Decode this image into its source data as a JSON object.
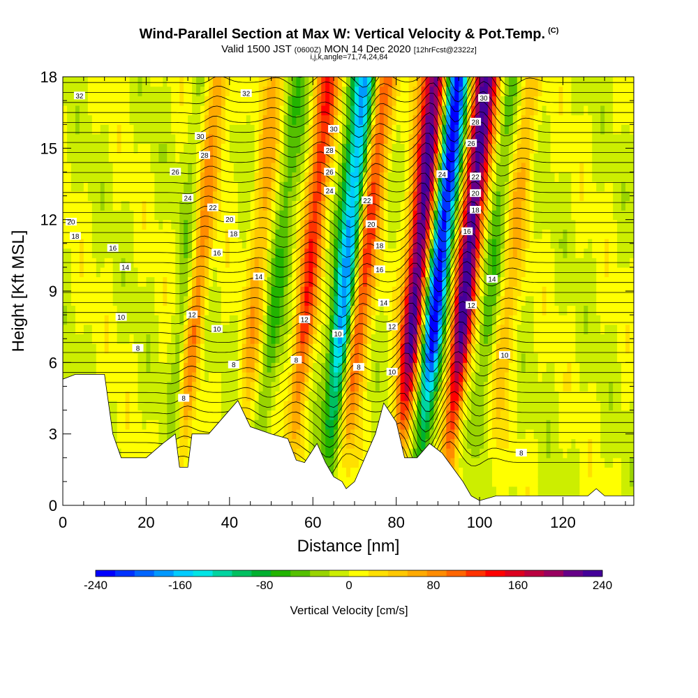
{
  "header": {
    "title": "Wind-Parallel Section at Max W: Vertical Velocity & Pot.Temp.",
    "title_tag": "(C)",
    "valid_main_a": "Valid 1500 JST",
    "valid_small_a": "(0600Z)",
    "valid_main_b": "MON 14 Dec 2020",
    "valid_small_b": "[12hrFcst@2322z]",
    "subline": "i,j,k,angle=71,74,24,84"
  },
  "chart_data": {
    "type": "heatmap",
    "title": "Wind-Parallel Section at Max W: Vertical Velocity & Pot.Temp.",
    "xlabel": "Distance [nm]",
    "ylabel": "Height [Kft MSL]",
    "xlim": [
      0,
      137
    ],
    "ylim": [
      0,
      18
    ],
    "x_ticks": [
      "0",
      "20",
      "40",
      "60",
      "80",
      "100",
      "120"
    ],
    "y_ticks": [
      "0",
      "3",
      "6",
      "9",
      "12",
      "15",
      "18"
    ],
    "colorbar": {
      "label": "Vertical Velocity [cm/s]",
      "range": [
        -240,
        240
      ],
      "tick_labels": [
        "-240",
        "-160",
        "-80",
        "0",
        "80",
        "160",
        "240"
      ],
      "colors": [
        "#0000ff",
        "#0033ff",
        "#0066ff",
        "#0099ff",
        "#00ccff",
        "#00e5e5",
        "#00d4a0",
        "#00c060",
        "#00b030",
        "#22b400",
        "#55c000",
        "#99d400",
        "#ccee00",
        "#ffff00",
        "#ffe000",
        "#ffc800",
        "#ffaa00",
        "#ff8c00",
        "#ff6600",
        "#ff3300",
        "#ff0000",
        "#dd0020",
        "#bb0040",
        "#990060",
        "#660088",
        "#440099"
      ]
    },
    "updrafts": [
      {
        "x": 30,
        "w_max": 170
      },
      {
        "x": 45,
        "w_max": 60
      },
      {
        "x": 57,
        "w_max": 120
      },
      {
        "x": 70,
        "w_max": 130
      },
      {
        "x": 83,
        "w_max": 240
      },
      {
        "x": 95,
        "w_max": 240
      },
      {
        "x": 105,
        "w_max": 60
      }
    ],
    "downdrafts": [
      {
        "x": 29,
        "w_min": -120
      },
      {
        "x": 50,
        "w_min": -60
      },
      {
        "x": 66,
        "w_min": -190
      },
      {
        "x": 88,
        "w_min": -240
      },
      {
        "x": 101,
        "w_min": -60
      }
    ],
    "terrain_kft": [
      [
        0,
        5.3
      ],
      [
        3,
        5.5
      ],
      [
        10,
        5.5
      ],
      [
        12,
        3.0
      ],
      [
        14,
        2.0
      ],
      [
        20,
        2.0
      ],
      [
        24,
        2.6
      ],
      [
        27,
        3.0
      ],
      [
        28,
        1.6
      ],
      [
        30,
        1.6
      ],
      [
        31,
        3.0
      ],
      [
        35,
        3.0
      ],
      [
        38,
        3.6
      ],
      [
        42,
        4.4
      ],
      [
        45,
        3.3
      ],
      [
        50,
        3.0
      ],
      [
        54,
        2.8
      ],
      [
        56,
        1.9
      ],
      [
        58,
        1.8
      ],
      [
        61,
        2.6
      ],
      [
        63,
        1.8
      ],
      [
        65,
        1.2
      ],
      [
        67,
        1.0
      ],
      [
        68,
        0.7
      ],
      [
        70,
        1.0
      ],
      [
        72,
        1.8
      ],
      [
        75,
        3.0
      ],
      [
        77,
        4.3
      ],
      [
        80,
        3.5
      ],
      [
        82,
        2.0
      ],
      [
        85,
        2.0
      ],
      [
        88,
        2.6
      ],
      [
        91,
        2.2
      ],
      [
        96,
        1.0
      ],
      [
        98,
        0.4
      ],
      [
        100,
        0.2
      ],
      [
        104,
        0.4
      ],
      [
        106,
        0.4
      ],
      [
        112,
        0.4
      ],
      [
        120,
        0.4
      ],
      [
        126,
        0.4
      ],
      [
        128,
        0.7
      ],
      [
        130,
        0.4
      ],
      [
        137,
        0.4
      ]
    ],
    "contour_labels": [
      {
        "x": 4,
        "y": 17.2,
        "text": "32"
      },
      {
        "x": 44,
        "y": 17.3,
        "text": "32"
      },
      {
        "x": 33,
        "y": 15.5,
        "text": "30"
      },
      {
        "x": 65,
        "y": 15.8,
        "text": "30"
      },
      {
        "x": 101,
        "y": 17.1,
        "text": "30"
      },
      {
        "x": 34,
        "y": 14.7,
        "text": "28"
      },
      {
        "x": 64,
        "y": 14.9,
        "text": "28"
      },
      {
        "x": 99,
        "y": 16.1,
        "text": "28"
      },
      {
        "x": 98,
        "y": 15.2,
        "text": "26"
      },
      {
        "x": 27,
        "y": 14.0,
        "text": "26"
      },
      {
        "x": 64,
        "y": 14.0,
        "text": "26"
      },
      {
        "x": 30,
        "y": 12.9,
        "text": "24"
      },
      {
        "x": 64,
        "y": 13.2,
        "text": "24"
      },
      {
        "x": 91,
        "y": 13.9,
        "text": "24"
      },
      {
        "x": 36,
        "y": 12.5,
        "text": "22"
      },
      {
        "x": 73,
        "y": 12.8,
        "text": "22"
      },
      {
        "x": 99,
        "y": 13.8,
        "text": "22"
      },
      {
        "x": 2,
        "y": 11.9,
        "text": "20"
      },
      {
        "x": 40,
        "y": 12.0,
        "text": "20"
      },
      {
        "x": 74,
        "y": 11.8,
        "text": "20"
      },
      {
        "x": 99,
        "y": 13.1,
        "text": "20"
      },
      {
        "x": 3,
        "y": 11.3,
        "text": "18"
      },
      {
        "x": 41,
        "y": 11.4,
        "text": "18"
      },
      {
        "x": 76,
        "y": 10.9,
        "text": "18"
      },
      {
        "x": 99,
        "y": 12.4,
        "text": "18"
      },
      {
        "x": 12,
        "y": 10.8,
        "text": "16"
      },
      {
        "x": 37,
        "y": 10.6,
        "text": "16"
      },
      {
        "x": 76,
        "y": 9.9,
        "text": "16"
      },
      {
        "x": 97,
        "y": 11.5,
        "text": "16"
      },
      {
        "x": 15,
        "y": 10.0,
        "text": "14"
      },
      {
        "x": 47,
        "y": 9.6,
        "text": "14"
      },
      {
        "x": 77,
        "y": 8.5,
        "text": "14"
      },
      {
        "x": 103,
        "y": 9.5,
        "text": "14"
      },
      {
        "x": 31,
        "y": 8.0,
        "text": "12"
      },
      {
        "x": 58,
        "y": 7.8,
        "text": "12"
      },
      {
        "x": 79,
        "y": 7.5,
        "text": "12"
      },
      {
        "x": 98,
        "y": 8.4,
        "text": "12"
      },
      {
        "x": 14,
        "y": 7.9,
        "text": "10"
      },
      {
        "x": 37,
        "y": 7.4,
        "text": "10"
      },
      {
        "x": 66,
        "y": 7.2,
        "text": "10"
      },
      {
        "x": 79,
        "y": 5.6,
        "text": "10"
      },
      {
        "x": 106,
        "y": 6.3,
        "text": "10"
      },
      {
        "x": 18,
        "y": 6.6,
        "text": "8"
      },
      {
        "x": 41,
        "y": 5.9,
        "text": "8"
      },
      {
        "x": 56,
        "y": 6.1,
        "text": "8"
      },
      {
        "x": 71,
        "y": 5.8,
        "text": "8"
      },
      {
        "x": 29,
        "y": 4.5,
        "text": "8"
      },
      {
        "x": 110,
        "y": 2.2,
        "text": "8"
      }
    ]
  }
}
